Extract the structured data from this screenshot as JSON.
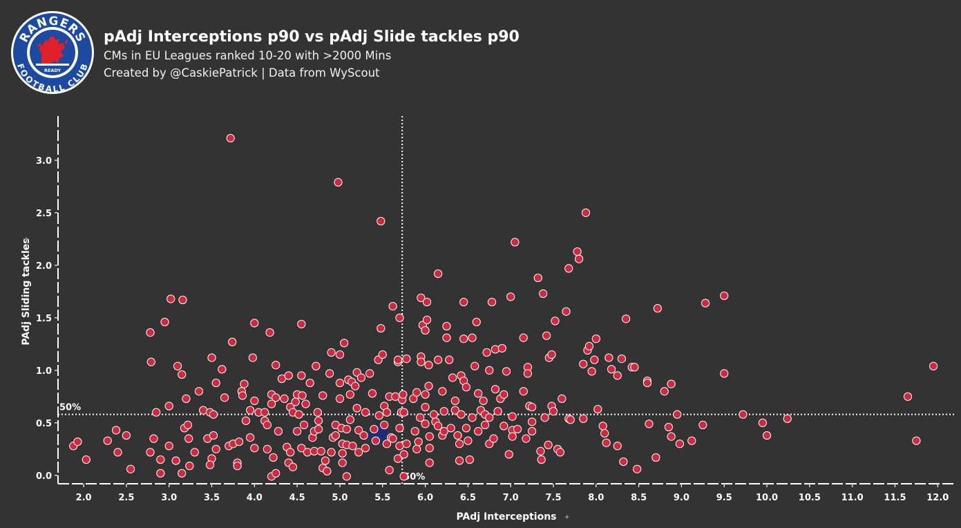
{
  "header": {
    "title": "pAdj Interceptions p90 vs pAdj Slide tackles p90",
    "subtitle": "CMs in EU Leagues ranked 10-20 with >2000 Mins",
    "credit": "Created by @CaskiePatrick | Data from WyScout"
  },
  "logo": {
    "top_text": "RANGERS",
    "bottom_text": "FOOTBALL CLUB",
    "motto": "READY",
    "colors": {
      "blue": "#1b4aa0",
      "red": "#e0202a",
      "white": "#ffffff"
    }
  },
  "chart_data": {
    "type": "scatter",
    "xlabel": "PAdj Interceptions",
    "ylabel": "PAdj Sliding tackles",
    "xlim": [
      1.7,
      12.2
    ],
    "ylim": [
      -0.08,
      3.42
    ],
    "xticks": [
      "2.0",
      "2.5",
      "3.0",
      "3.5",
      "4.0",
      "4.5",
      "5.0",
      "5.5",
      "6.0",
      "6.5",
      "7.0",
      "7.5",
      "8.0",
      "8.5",
      "9.0",
      "9.5",
      "10.0",
      "10.5",
      "11.0",
      "11.5",
      "12.0"
    ],
    "yticks": [
      "0.0",
      "0.5",
      "1.0",
      "1.5",
      "2.0",
      "2.5",
      "3.0"
    ],
    "median_x": 5.73,
    "median_y": 0.58,
    "median_x_label": "50%",
    "median_y_label": "50%",
    "point_color": "#d0283c",
    "highlight_color": "#1a2c80",
    "highlight": {
      "x": 5.45,
      "y": 0.4
    },
    "points": [
      [
        1.88,
        0.28
      ],
      [
        1.93,
        0.32
      ],
      [
        2.03,
        0.15
      ],
      [
        2.28,
        0.33
      ],
      [
        2.38,
        0.43
      ],
      [
        2.4,
        0.22
      ],
      [
        2.5,
        0.38
      ],
      [
        2.55,
        0.06
      ],
      [
        2.78,
        1.36
      ],
      [
        2.79,
        1.08
      ],
      [
        2.78,
        0.22
      ],
      [
        2.82,
        0.35
      ],
      [
        2.85,
        0.6
      ],
      [
        2.9,
        0.15
      ],
      [
        2.9,
        0.02
      ],
      [
        2.95,
        1.46
      ],
      [
        3.0,
        0.66
      ],
      [
        3.0,
        0.28
      ],
      [
        3.02,
        1.68
      ],
      [
        3.08,
        0.14
      ],
      [
        3.1,
        1.04
      ],
      [
        3.16,
        1.67
      ],
      [
        3.15,
        0.96
      ],
      [
        3.2,
        0.73
      ],
      [
        3.18,
        0.45
      ],
      [
        3.22,
        0.48
      ],
      [
        3.23,
        0.35
      ],
      [
        3.24,
        0.09
      ],
      [
        3.15,
        0.02
      ],
      [
        3.3,
        0.22
      ],
      [
        3.35,
        0.8
      ],
      [
        3.4,
        0.62
      ],
      [
        3.45,
        0.35
      ],
      [
        3.5,
        1.12
      ],
      [
        3.48,
        0.6
      ],
      [
        3.52,
        0.58
      ],
      [
        3.55,
        0.88
      ],
      [
        3.52,
        0.38
      ],
      [
        3.55,
        0.25
      ],
      [
        3.5,
        0.16
      ],
      [
        3.48,
        0.1
      ],
      [
        3.62,
        1.01
      ],
      [
        3.65,
        0.74
      ],
      [
        3.7,
        0.28
      ],
      [
        3.72,
        3.21
      ],
      [
        3.74,
        1.27
      ],
      [
        3.75,
        0.3
      ],
      [
        3.8,
        0.12
      ],
      [
        3.82,
        0.32
      ],
      [
        3.8,
        0.09
      ],
      [
        3.85,
        0.8
      ],
      [
        3.86,
        0.76
      ],
      [
        3.88,
        0.87
      ],
      [
        3.9,
        0.52
      ],
      [
        3.95,
        0.62
      ],
      [
        3.95,
        0.36
      ],
      [
        3.98,
        1.12
      ],
      [
        4.0,
        1.45
      ],
      [
        4.0,
        0.71
      ],
      [
        4.0,
        0.26
      ],
      [
        4.05,
        0.6
      ],
      [
        4.12,
        0.6
      ],
      [
        4.12,
        0.52
      ],
      [
        4.15,
        0.25
      ],
      [
        4.15,
        0.48
      ],
      [
        4.18,
        1.36
      ],
      [
        4.2,
        0.77
      ],
      [
        4.2,
        0.68
      ],
      [
        4.2,
        -0.01
      ],
      [
        4.22,
        0.17
      ],
      [
        4.25,
        0.74
      ],
      [
        4.25,
        1.05
      ],
      [
        4.28,
        0.42
      ],
      [
        4.25,
        0.02
      ],
      [
        4.32,
        0.92
      ],
      [
        4.35,
        0.73
      ],
      [
        4.38,
        0.27
      ],
      [
        4.4,
        0.95
      ],
      [
        4.42,
        0.65
      ],
      [
        4.4,
        0.12
      ],
      [
        4.42,
        0.22
      ],
      [
        4.45,
        0.6
      ],
      [
        4.45,
        0.08
      ],
      [
        4.48,
        0.7
      ],
      [
        4.5,
        0.42
      ],
      [
        4.5,
        0.77
      ],
      [
        4.52,
        0.58
      ],
      [
        4.55,
        1.44
      ],
      [
        4.55,
        0.95
      ],
      [
        4.56,
        0.76
      ],
      [
        4.55,
        0.26
      ],
      [
        4.58,
        0.48
      ],
      [
        4.6,
        0.68
      ],
      [
        4.62,
        0.22
      ],
      [
        4.65,
        0.88
      ],
      [
        4.68,
        0.36
      ],
      [
        4.7,
        0.42
      ],
      [
        4.7,
        0.23
      ],
      [
        4.72,
        1.04
      ],
      [
        4.74,
        0.6
      ],
      [
        4.75,
        0.52
      ],
      [
        4.75,
        0.44
      ],
      [
        4.78,
        0.23
      ],
      [
        4.8,
        0.76
      ],
      [
        4.8,
        0.07
      ],
      [
        4.83,
        0.14
      ],
      [
        4.85,
        0.04
      ],
      [
        4.88,
        0.97
      ],
      [
        4.9,
        1.17
      ],
      [
        4.9,
        0.22
      ],
      [
        4.92,
        0.36
      ],
      [
        4.95,
        0.48
      ],
      [
        4.95,
        0.38
      ],
      [
        4.98,
        2.79
      ],
      [
        5.0,
        1.15
      ],
      [
        5.0,
        0.88
      ],
      [
        5.0,
        0.73
      ],
      [
        5.02,
        0.45
      ],
      [
        5.03,
        0.3
      ],
      [
        5.03,
        0.21
      ],
      [
        5.03,
        0.12
      ],
      [
        5.05,
        1.26
      ],
      [
        5.08,
        0.44
      ],
      [
        5.08,
        0.29
      ],
      [
        5.08,
        -0.01
      ],
      [
        5.1,
        0.91
      ],
      [
        5.12,
        0.77
      ],
      [
        5.12,
        0.53
      ],
      [
        5.14,
        0.89
      ],
      [
        5.15,
        0.28
      ],
      [
        5.18,
        0.85
      ],
      [
        5.2,
        0.98
      ],
      [
        5.2,
        0.64
      ],
      [
        5.22,
        0.43
      ],
      [
        5.22,
        0.22
      ],
      [
        5.25,
        0.93
      ],
      [
        5.28,
        0.38
      ],
      [
        5.3,
        0.6
      ],
      [
        5.3,
        0.26
      ],
      [
        5.35,
        0.97
      ],
      [
        5.38,
        0.78
      ],
      [
        5.4,
        0.44
      ],
      [
        5.42,
        0.33
      ],
      [
        5.45,
        1.1
      ],
      [
        5.46,
        0.57
      ],
      [
        5.48,
        2.42
      ],
      [
        5.48,
        1.4
      ],
      [
        5.5,
        1.15
      ],
      [
        5.52,
        0.66
      ],
      [
        5.52,
        0.48
      ],
      [
        5.55,
        0.6
      ],
      [
        5.55,
        0.3
      ],
      [
        5.58,
        0.05
      ],
      [
        5.58,
        0.75
      ],
      [
        5.6,
        0.36
      ],
      [
        5.62,
        1.61
      ],
      [
        5.62,
        0.35
      ],
      [
        5.65,
        0.75
      ],
      [
        5.68,
        1.08
      ],
      [
        5.68,
        0.16
      ],
      [
        5.7,
        1.5
      ],
      [
        5.7,
        0.45
      ],
      [
        5.7,
        0.28
      ],
      [
        5.72,
        0.6
      ],
      [
        5.73,
        0.72
      ],
      [
        5.74,
        0.77
      ],
      [
        5.75,
        0.6
      ],
      [
        5.75,
        0.2
      ],
      [
        5.75,
        -0.01
      ],
      [
        5.78,
        1.11
      ],
      [
        5.78,
        0.3
      ],
      [
        5.68,
        1.1
      ],
      [
        5.86,
        0.73
      ],
      [
        5.88,
        0.42
      ],
      [
        5.9,
        0.25
      ],
      [
        5.92,
        0.32
      ],
      [
        5.9,
        0.79
      ],
      [
        5.94,
        0.55
      ],
      [
        5.95,
        1.69
      ],
      [
        5.95,
        1.13
      ],
      [
        5.95,
        1.08
      ],
      [
        5.97,
        1.43
      ],
      [
        6.0,
        1.38
      ],
      [
        6.0,
        0.77
      ],
      [
        6.0,
        0.65
      ],
      [
        6.0,
        0.49
      ],
      [
        6.02,
        1.65
      ],
      [
        6.02,
        1.48
      ],
      [
        6.04,
        1.05
      ],
      [
        6.04,
        0.85
      ],
      [
        6.05,
        0.37
      ],
      [
        6.05,
        0.26
      ],
      [
        6.05,
        0.12
      ],
      [
        6.1,
        0.58
      ],
      [
        6.12,
        0.51
      ],
      [
        6.15,
        1.1
      ],
      [
        6.15,
        1.92
      ],
      [
        6.15,
        0.47
      ],
      [
        6.2,
        0.8
      ],
      [
        6.2,
        0.38
      ],
      [
        6.22,
        0.61
      ],
      [
        6.22,
        0.42
      ],
      [
        6.25,
        1.42
      ],
      [
        6.25,
        1.31
      ],
      [
        6.28,
        1.1
      ],
      [
        6.3,
        0.45
      ],
      [
        6.32,
        0.93
      ],
      [
        6.35,
        0.71
      ],
      [
        6.35,
        0.62
      ],
      [
        6.38,
        0.38
      ],
      [
        6.4,
        0.3
      ],
      [
        6.4,
        0.14
      ],
      [
        6.42,
        0.95
      ],
      [
        6.42,
        0.58
      ],
      [
        6.45,
        1.65
      ],
      [
        6.45,
        1.3
      ],
      [
        6.45,
        0.9
      ],
      [
        6.48,
        0.84
      ],
      [
        6.48,
        0.45
      ],
      [
        6.5,
        0.33
      ],
      [
        6.52,
        0.15
      ],
      [
        6.55,
        1.31
      ],
      [
        6.55,
        0.55
      ],
      [
        6.58,
        1.04
      ],
      [
        6.6,
        1.46
      ],
      [
        6.62,
        0.78
      ],
      [
        6.62,
        0.42
      ],
      [
        6.65,
        0.62
      ],
      [
        6.68,
        0.71
      ],
      [
        6.7,
        0.58
      ],
      [
        6.7,
        0.48
      ],
      [
        6.72,
        1.17
      ],
      [
        6.75,
        1.0
      ],
      [
        6.75,
        0.3
      ],
      [
        6.75,
        0.55
      ],
      [
        6.78,
        1.65
      ],
      [
        6.8,
        0.35
      ],
      [
        6.82,
        1.2
      ],
      [
        6.82,
        0.82
      ],
      [
        6.85,
        0.61
      ],
      [
        6.88,
        0.73
      ],
      [
        6.9,
        1.21
      ],
      [
        6.92,
        0.47
      ],
      [
        6.92,
        0.77
      ],
      [
        6.95,
        0.99
      ],
      [
        6.98,
        0.2
      ],
      [
        7.0,
        1.7
      ],
      [
        7.02,
        0.56
      ],
      [
        7.02,
        0.43
      ],
      [
        7.02,
        0.37
      ],
      [
        7.05,
        2.22
      ],
      [
        7.08,
        0.44
      ],
      [
        7.15,
        1.31
      ],
      [
        7.15,
        0.8
      ],
      [
        7.18,
        0.35
      ],
      [
        7.2,
        1.03
      ],
      [
        7.2,
        0.97
      ],
      [
        7.22,
        0.66
      ],
      [
        7.25,
        0.51
      ],
      [
        7.25,
        0.42
      ],
      [
        7.25,
        0.65
      ],
      [
        7.32,
        1.88
      ],
      [
        7.35,
        0.23
      ],
      [
        7.36,
        0.15
      ],
      [
        7.38,
        1.73
      ],
      [
        7.4,
        0.55
      ],
      [
        7.42,
        1.33
      ],
      [
        7.44,
        0.29
      ],
      [
        7.45,
        1.12
      ],
      [
        7.48,
        1.15
      ],
      [
        7.48,
        0.66
      ],
      [
        7.5,
        0.61
      ],
      [
        7.52,
        1.47
      ],
      [
        7.55,
        0.25
      ],
      [
        7.58,
        0.22
      ],
      [
        7.6,
        0.73
      ],
      [
        7.65,
        1.56
      ],
      [
        7.68,
        0.54
      ],
      [
        7.68,
        1.97
      ],
      [
        7.7,
        0.53
      ],
      [
        7.78,
        2.13
      ],
      [
        7.8,
        2.06
      ],
      [
        7.85,
        1.06
      ],
      [
        7.85,
        0.54
      ],
      [
        7.88,
        2.5
      ],
      [
        7.9,
        1.19
      ],
      [
        7.92,
        1.23
      ],
      [
        7.95,
        0.99
      ],
      [
        7.98,
        1.1
      ],
      [
        8.0,
        1.3
      ],
      [
        8.02,
        0.63
      ],
      [
        8.08,
        0.47
      ],
      [
        8.1,
        0.4
      ],
      [
        8.12,
        0.31
      ],
      [
        8.15,
        1.12
      ],
      [
        8.18,
        1.01
      ],
      [
        8.25,
        0.28
      ],
      [
        8.25,
        0.95
      ],
      [
        8.3,
        1.11
      ],
      [
        8.32,
        0.13
      ],
      [
        8.35,
        1.49
      ],
      [
        8.42,
        1.03
      ],
      [
        8.45,
        1.03
      ],
      [
        8.48,
        0.06
      ],
      [
        8.6,
        0.9
      ],
      [
        8.6,
        0.88
      ],
      [
        8.62,
        0.49
      ],
      [
        8.7,
        0.17
      ],
      [
        8.72,
        1.59
      ],
      [
        8.8,
        0.8
      ],
      [
        8.85,
        0.46
      ],
      [
        8.88,
        0.87
      ],
      [
        8.88,
        0.37
      ],
      [
        8.95,
        0.58
      ],
      [
        8.98,
        0.3
      ],
      [
        9.12,
        0.33
      ],
      [
        9.25,
        0.48
      ],
      [
        9.28,
        1.64
      ],
      [
        9.5,
        1.71
      ],
      [
        9.5,
        0.97
      ],
      [
        9.72,
        0.58
      ],
      [
        9.95,
        0.5
      ],
      [
        10.0,
        0.38
      ],
      [
        10.24,
        0.54
      ],
      [
        11.65,
        0.75
      ],
      [
        11.75,
        0.33
      ],
      [
        11.95,
        1.04
      ]
    ]
  }
}
